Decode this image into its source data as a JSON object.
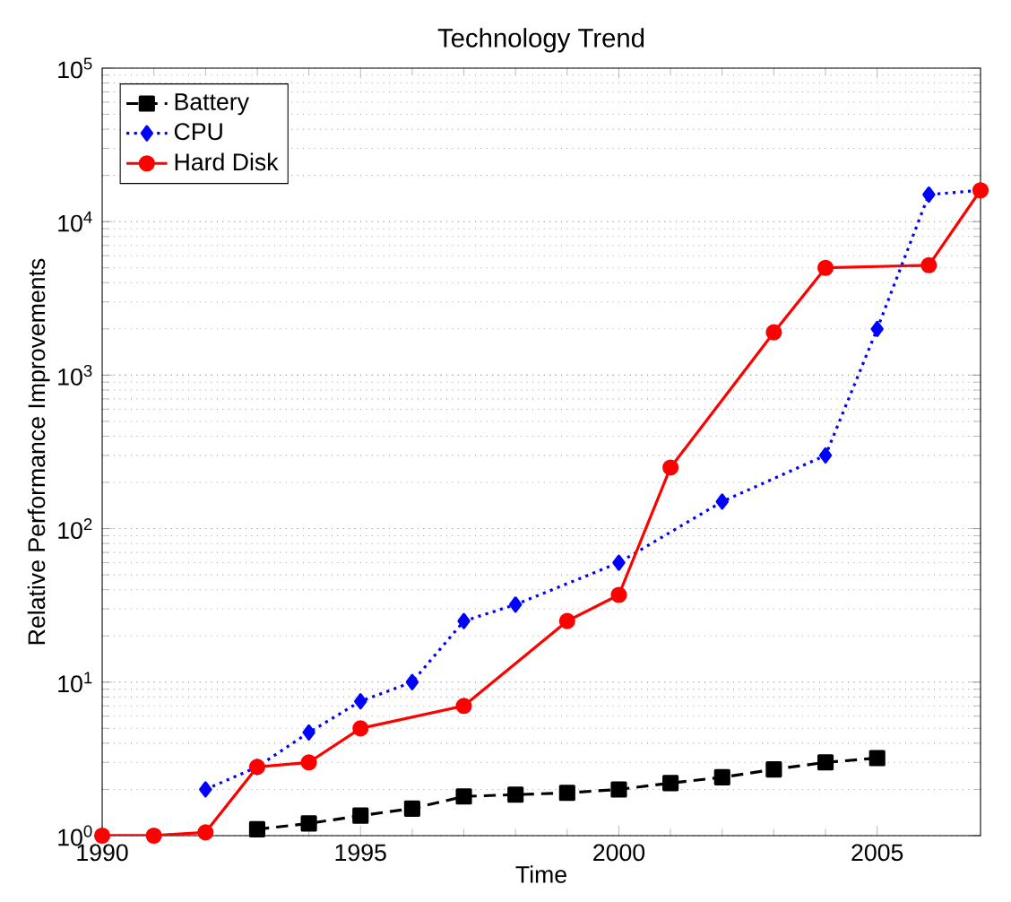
{
  "chart_data": {
    "type": "line",
    "title": "Technology Trend",
    "xlabel": "Time",
    "ylabel": "Relative Performance Improvements",
    "log": "y",
    "grid": "y",
    "legend": "top left",
    "xlim": [
      1990,
      2007
    ],
    "xticks": [
      1990,
      1995,
      2000,
      2005
    ],
    "ylim": [
      1,
      100000
    ],
    "yticks": [
      {
        "value": 1,
        "label": "10$^{0}$"
      },
      {
        "value": 10,
        "label": "10$^{1}$"
      },
      {
        "value": 100,
        "label": "10$^{2}$"
      },
      {
        "value": 1000,
        "label": "10$^{3}$"
      },
      {
        "value": 10000,
        "label": "10$^{4}$"
      },
      {
        "value": 100000,
        "label": "10$^{5}$"
      }
    ],
    "series": [
      {
        "name": "Battery",
        "color": "#000000",
        "marker": "square",
        "line_style": "dashed",
        "x": [
          1993,
          1994,
          1995,
          1996,
          1997,
          1998,
          1999,
          2000,
          2001,
          2002,
          2003,
          2004,
          2005
        ],
        "values": [
          1.1,
          1.2,
          1.35,
          1.5,
          1.8,
          1.85,
          1.9,
          2,
          2.2,
          2.4,
          2.7,
          3,
          3.2
        ]
      },
      {
        "name": "CPU",
        "color": "#0000ff",
        "marker": "diamond",
        "line_style": "dotted",
        "x": [
          1992,
          1993,
          1994,
          1995,
          1996,
          1997,
          1998,
          2000,
          2002,
          2004,
          2005,
          2006,
          2007
        ],
        "values": [
          2,
          2.8,
          4.7,
          7.5,
          10,
          25,
          32,
          60,
          150,
          300,
          2000,
          15000,
          16000
        ]
      },
      {
        "name": "Hard Disk",
        "color": "#ff0000",
        "marker": "circle",
        "line_style": "solid",
        "x": [
          1990,
          1991,
          1992,
          1993,
          1994,
          1995,
          1997,
          1999,
          2000,
          2001,
          2003,
          2004,
          2006,
          2007
        ],
        "values": [
          1,
          1,
          1.05,
          2.8,
          3,
          5,
          7,
          25,
          37,
          250,
          1900,
          5000,
          5200,
          16000
        ]
      }
    ]
  }
}
